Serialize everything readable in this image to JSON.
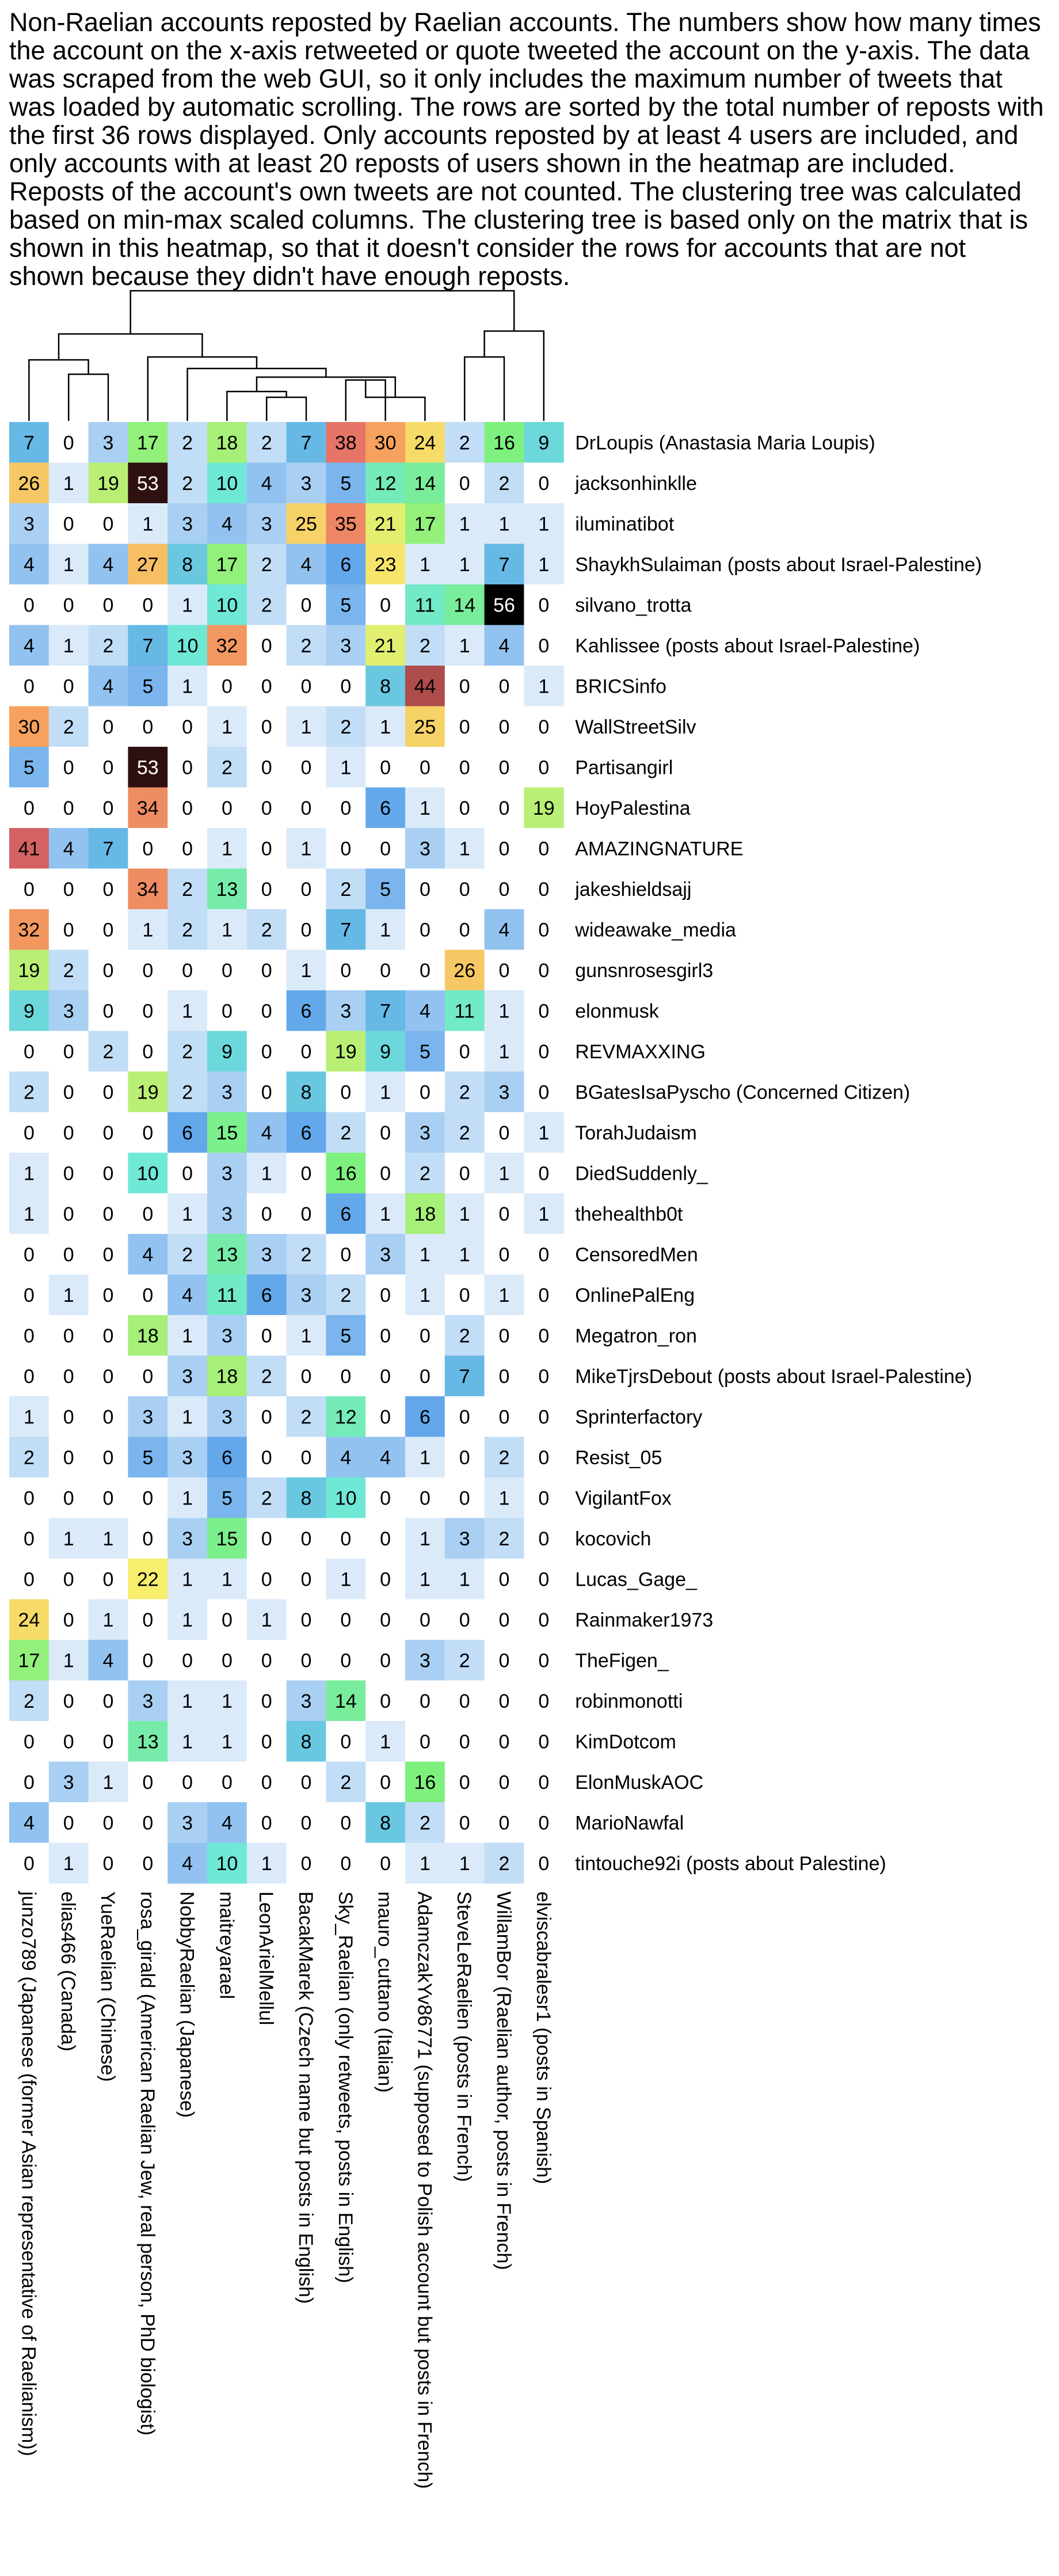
{
  "chart_data": {
    "type": "heatmap",
    "title": "Non-Raelian accounts reposted by Raelian accounts. The numbers show how many times the account on the x-axis retweeted or quote tweeted the account on the y-axis. The data was scraped from the web GUI, so it only includes the maximum number of tweets that was loaded by automatic scrolling. The rows are sorted by the total number of reposts with the first 36 rows displayed. Only accounts reposted by at least 4 users are included, and only accounts with at least 20 reposts of users shown in the heatmap are included. Reposts of the account's own tweets are not counted. The clustering tree was calculated based on min-max scaled columns. The clustering tree is based only on the matrix that is shown in this heatmap, so that it doesn't consider the rows for accounts that are not shown because they didn't have enough reposts.",
    "columns": [
      "junzo789 (Japanese (former Asian representative of Raelianism))",
      "elias466 (Canada)",
      "YueRaelian (Chinese)",
      "rosa_girald (American Raelian Jew, real person, PhD biologist)",
      "NobbyRaelian (Japanese)",
      "maitreyarael",
      "LeonArielMellul",
      "BacakMarek (Czech name but posts in English)",
      "Sky_Raelian (only retweets, posts in English)",
      "mauro_cuttano (Italian)",
      "AdamczakYv86771 (supposed to Polish account but posts in French)",
      "SteveLeRaelien (posts in French)",
      "WillamBor (Raelian author, posts in French)",
      "elviscabralesr1 (posts in Spanish)"
    ],
    "rows": [
      "DrLoupis (Anastasia Maria Loupis)",
      "jacksonhinklle",
      "iluminatibot",
      "ShaykhSulaiman (posts about Israel-Palestine)",
      "silvano_trotta",
      "Kahlissee (posts about Israel-Palestine)",
      "BRICSinfo",
      "WallStreetSilv",
      "Partisangirl",
      "HoyPalestina",
      "AMAZINGNATURE",
      "jakeshieldsajj",
      "wideawake_media",
      "gunsnrosesgirl3",
      "elonmusk",
      "REVMAXXING",
      "BGatesIsaPyscho (Concerned Citizen)",
      "TorahJudaism",
      "DiedSuddenly_",
      "thehealthb0t",
      "CensoredMen",
      "OnlinePalEng",
      "Megatron_ron",
      "MikeTjrsDebout (posts about Israel-Palestine)",
      "Sprinterfactory",
      "Resist_05",
      "VigilantFox",
      "kocovich",
      "Lucas_Gage_",
      "Rainmaker1973",
      "TheFigen_",
      "robinmonotti",
      "KimDotcom",
      "ElonMuskAOC",
      "MarioNawfal",
      "tintouche92i (posts about Palestine)"
    ],
    "values": [
      [
        7,
        0,
        3,
        17,
        2,
        18,
        2,
        7,
        38,
        30,
        24,
        2,
        16,
        9
      ],
      [
        26,
        1,
        19,
        53,
        2,
        10,
        4,
        3,
        5,
        12,
        14,
        0,
        2,
        0
      ],
      [
        3,
        0,
        0,
        1,
        3,
        4,
        3,
        25,
        35,
        21,
        17,
        1,
        1,
        1
      ],
      [
        4,
        1,
        4,
        27,
        8,
        17,
        2,
        4,
        6,
        23,
        1,
        1,
        7,
        1
      ],
      [
        0,
        0,
        0,
        0,
        1,
        10,
        2,
        0,
        5,
        0,
        11,
        14,
        56,
        0
      ],
      [
        4,
        1,
        2,
        7,
        10,
        32,
        0,
        2,
        3,
        21,
        2,
        1,
        4,
        0
      ],
      [
        0,
        0,
        4,
        5,
        1,
        0,
        0,
        0,
        0,
        8,
        44,
        0,
        0,
        1
      ],
      [
        30,
        2,
        0,
        0,
        0,
        1,
        0,
        1,
        2,
        1,
        25,
        0,
        0,
        0
      ],
      [
        5,
        0,
        0,
        53,
        0,
        2,
        0,
        0,
        1,
        0,
        0,
        0,
        0,
        0
      ],
      [
        0,
        0,
        0,
        34,
        0,
        0,
        0,
        0,
        0,
        6,
        1,
        0,
        0,
        19
      ],
      [
        41,
        4,
        7,
        0,
        0,
        1,
        0,
        1,
        0,
        0,
        3,
        1,
        0,
        0
      ],
      [
        0,
        0,
        0,
        34,
        2,
        13,
        0,
        0,
        2,
        5,
        0,
        0,
        0,
        0
      ],
      [
        32,
        0,
        0,
        1,
        2,
        1,
        2,
        0,
        7,
        1,
        0,
        0,
        4,
        0
      ],
      [
        19,
        2,
        0,
        0,
        0,
        0,
        0,
        1,
        0,
        0,
        0,
        26,
        0,
        0
      ],
      [
        9,
        3,
        0,
        0,
        1,
        0,
        0,
        6,
        3,
        7,
        4,
        11,
        1,
        0
      ],
      [
        0,
        0,
        2,
        0,
        2,
        9,
        0,
        0,
        19,
        9,
        5,
        0,
        1,
        0
      ],
      [
        2,
        0,
        0,
        19,
        2,
        3,
        0,
        8,
        0,
        1,
        0,
        2,
        3,
        0
      ],
      [
        0,
        0,
        0,
        0,
        6,
        15,
        4,
        6,
        2,
        0,
        3,
        2,
        0,
        1
      ],
      [
        1,
        0,
        0,
        10,
        0,
        3,
        1,
        0,
        16,
        0,
        2,
        0,
        1,
        0
      ],
      [
        1,
        0,
        0,
        0,
        1,
        3,
        0,
        0,
        6,
        1,
        18,
        1,
        0,
        1
      ],
      [
        0,
        0,
        0,
        4,
        2,
        13,
        3,
        2,
        0,
        3,
        1,
        1,
        0,
        0
      ],
      [
        0,
        1,
        0,
        0,
        4,
        11,
        6,
        3,
        2,
        0,
        1,
        0,
        1,
        0
      ],
      [
        0,
        0,
        0,
        18,
        1,
        3,
        0,
        1,
        5,
        0,
        0,
        2,
        0,
        0
      ],
      [
        0,
        0,
        0,
        0,
        3,
        18,
        2,
        0,
        0,
        0,
        0,
        7,
        0,
        0
      ],
      [
        1,
        0,
        0,
        3,
        1,
        3,
        0,
        2,
        12,
        0,
        6,
        0,
        0,
        0
      ],
      [
        2,
        0,
        0,
        5,
        3,
        6,
        0,
        0,
        4,
        4,
        1,
        0,
        2,
        0
      ],
      [
        0,
        0,
        0,
        0,
        1,
        5,
        2,
        8,
        10,
        0,
        0,
        0,
        1,
        0
      ],
      [
        0,
        1,
        1,
        0,
        3,
        15,
        0,
        0,
        0,
        0,
        1,
        3,
        2,
        0
      ],
      [
        0,
        0,
        0,
        22,
        1,
        1,
        0,
        0,
        1,
        0,
        1,
        1,
        0,
        0
      ],
      [
        24,
        0,
        1,
        0,
        1,
        0,
        1,
        0,
        0,
        0,
        0,
        0,
        0,
        0
      ],
      [
        17,
        1,
        4,
        0,
        0,
        0,
        0,
        0,
        0,
        0,
        3,
        2,
        0,
        0
      ],
      [
        2,
        0,
        0,
        3,
        1,
        1,
        0,
        3,
        14,
        0,
        0,
        0,
        0,
        0
      ],
      [
        0,
        0,
        0,
        13,
        1,
        1,
        0,
        8,
        0,
        1,
        0,
        0,
        0,
        0
      ],
      [
        0,
        3,
        1,
        0,
        0,
        0,
        0,
        0,
        2,
        0,
        16,
        0,
        0,
        0
      ],
      [
        4,
        0,
        0,
        0,
        3,
        4,
        0,
        0,
        0,
        8,
        2,
        0,
        0,
        0
      ],
      [
        0,
        1,
        0,
        0,
        4,
        10,
        1,
        0,
        0,
        0,
        1,
        1,
        2,
        0
      ]
    ],
    "value_range": [
      0,
      56
    ],
    "dendrogram": "column clustering tree shown above the heatmap",
    "colors": {
      "high": "#000000",
      "upper": "#e26a6a",
      "mid_high": "#f6a25e",
      "mid": "#f6ee6c",
      "mid_low": "#7ef07e",
      "low_mid": "#6fe8d6",
      "low": "#63a8ea",
      "zero": "#ffffff",
      "text": "#000000",
      "text_on_dark": "#ffffff"
    }
  }
}
